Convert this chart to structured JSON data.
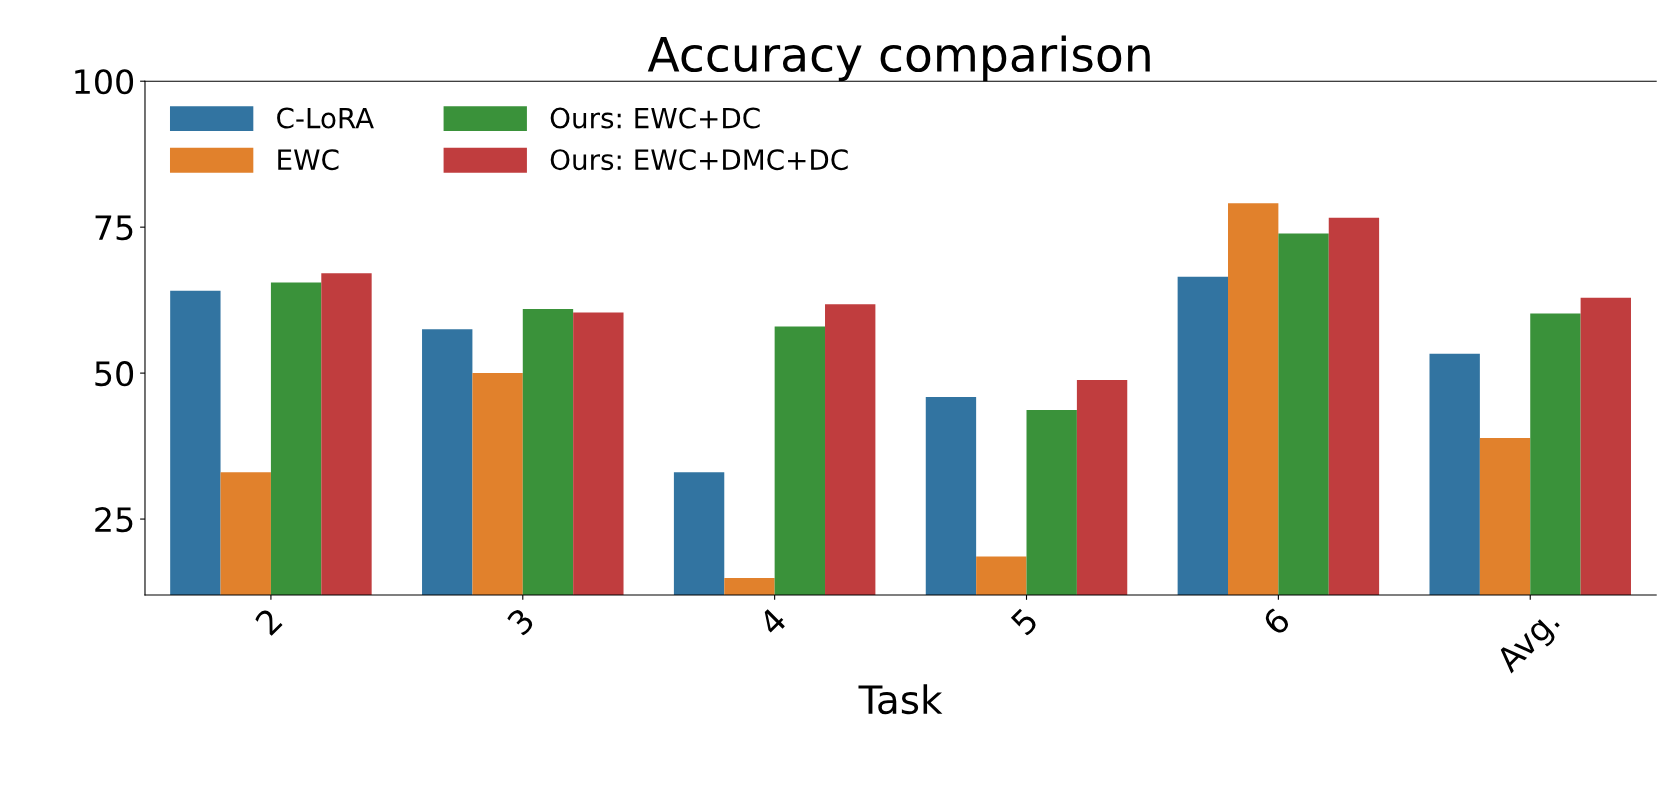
{
  "chart_data": {
    "type": "bar",
    "title": "Accuracy comparison",
    "xlabel": "Task",
    "categories": [
      "2",
      "3",
      "4",
      "5",
      "6",
      "Avg."
    ],
    "series": [
      {
        "name": "C-LoRA",
        "color": "#3274a1",
        "values": [
          64.1,
          57.5,
          33.0,
          45.9,
          66.5,
          53.3
        ]
      },
      {
        "name": "EWC",
        "color": "#e1812c",
        "values": [
          33.0,
          50.0,
          14.9,
          18.6,
          79.1,
          38.9
        ]
      },
      {
        "name": "Ours: EWC+DC",
        "color": "#3a923a",
        "values": [
          65.5,
          61.0,
          58.0,
          43.7,
          73.9,
          60.2
        ]
      },
      {
        "name": "Ours: EWC+DMC+DC",
        "color": "#c03d3e",
        "values": [
          67.1,
          60.4,
          61.8,
          48.8,
          76.6,
          62.9
        ]
      }
    ],
    "ylim": [
      12,
      100
    ],
    "yticks": [
      25,
      50,
      75,
      100
    ],
    "grid": false,
    "legend": "top left"
  }
}
